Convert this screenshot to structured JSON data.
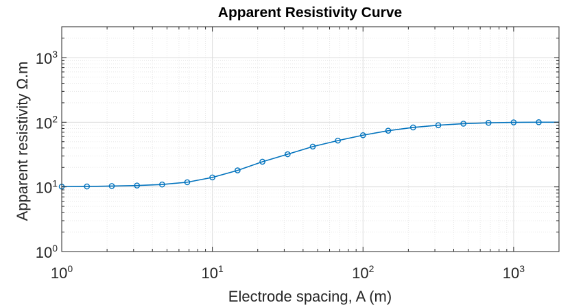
{
  "chart_data": {
    "type": "line",
    "title": "Apparent Resistivity Curve",
    "xlabel": "Electrode spacing, A (m)",
    "ylabel": "Apparent resistivity Ω.m",
    "x_scale": "log",
    "y_scale": "log",
    "xlim": [
      1,
      2000
    ],
    "ylim": [
      1,
      3000
    ],
    "grid": true,
    "minor_grid": true,
    "x_ticks": [
      {
        "base": "10",
        "exp": "0"
      },
      {
        "base": "10",
        "exp": "1"
      },
      {
        "base": "10",
        "exp": "2"
      },
      {
        "base": "10",
        "exp": "3"
      }
    ],
    "y_ticks": [
      {
        "base": "10",
        "exp": "0"
      },
      {
        "base": "10",
        "exp": "1"
      },
      {
        "base": "10",
        "exp": "2"
      },
      {
        "base": "10",
        "exp": "3"
      }
    ],
    "line_color": "#0072BD",
    "marker": "circle",
    "series": [
      {
        "x": [
          1,
          1.47,
          2.15,
          3.16,
          4.64,
          6.81,
          10,
          14.7,
          21.5,
          31.6,
          46.4,
          68.1,
          100,
          147,
          215,
          316,
          464,
          681,
          1000,
          1468,
          2000
        ],
        "y": [
          10.1,
          10.15,
          10.3,
          10.5,
          10.9,
          11.8,
          14,
          18,
          24.5,
          32,
          42,
          52,
          63,
          74,
          83,
          90,
          95,
          98,
          99.5,
          100,
          100
        ]
      }
    ],
    "marker_count": 20
  }
}
